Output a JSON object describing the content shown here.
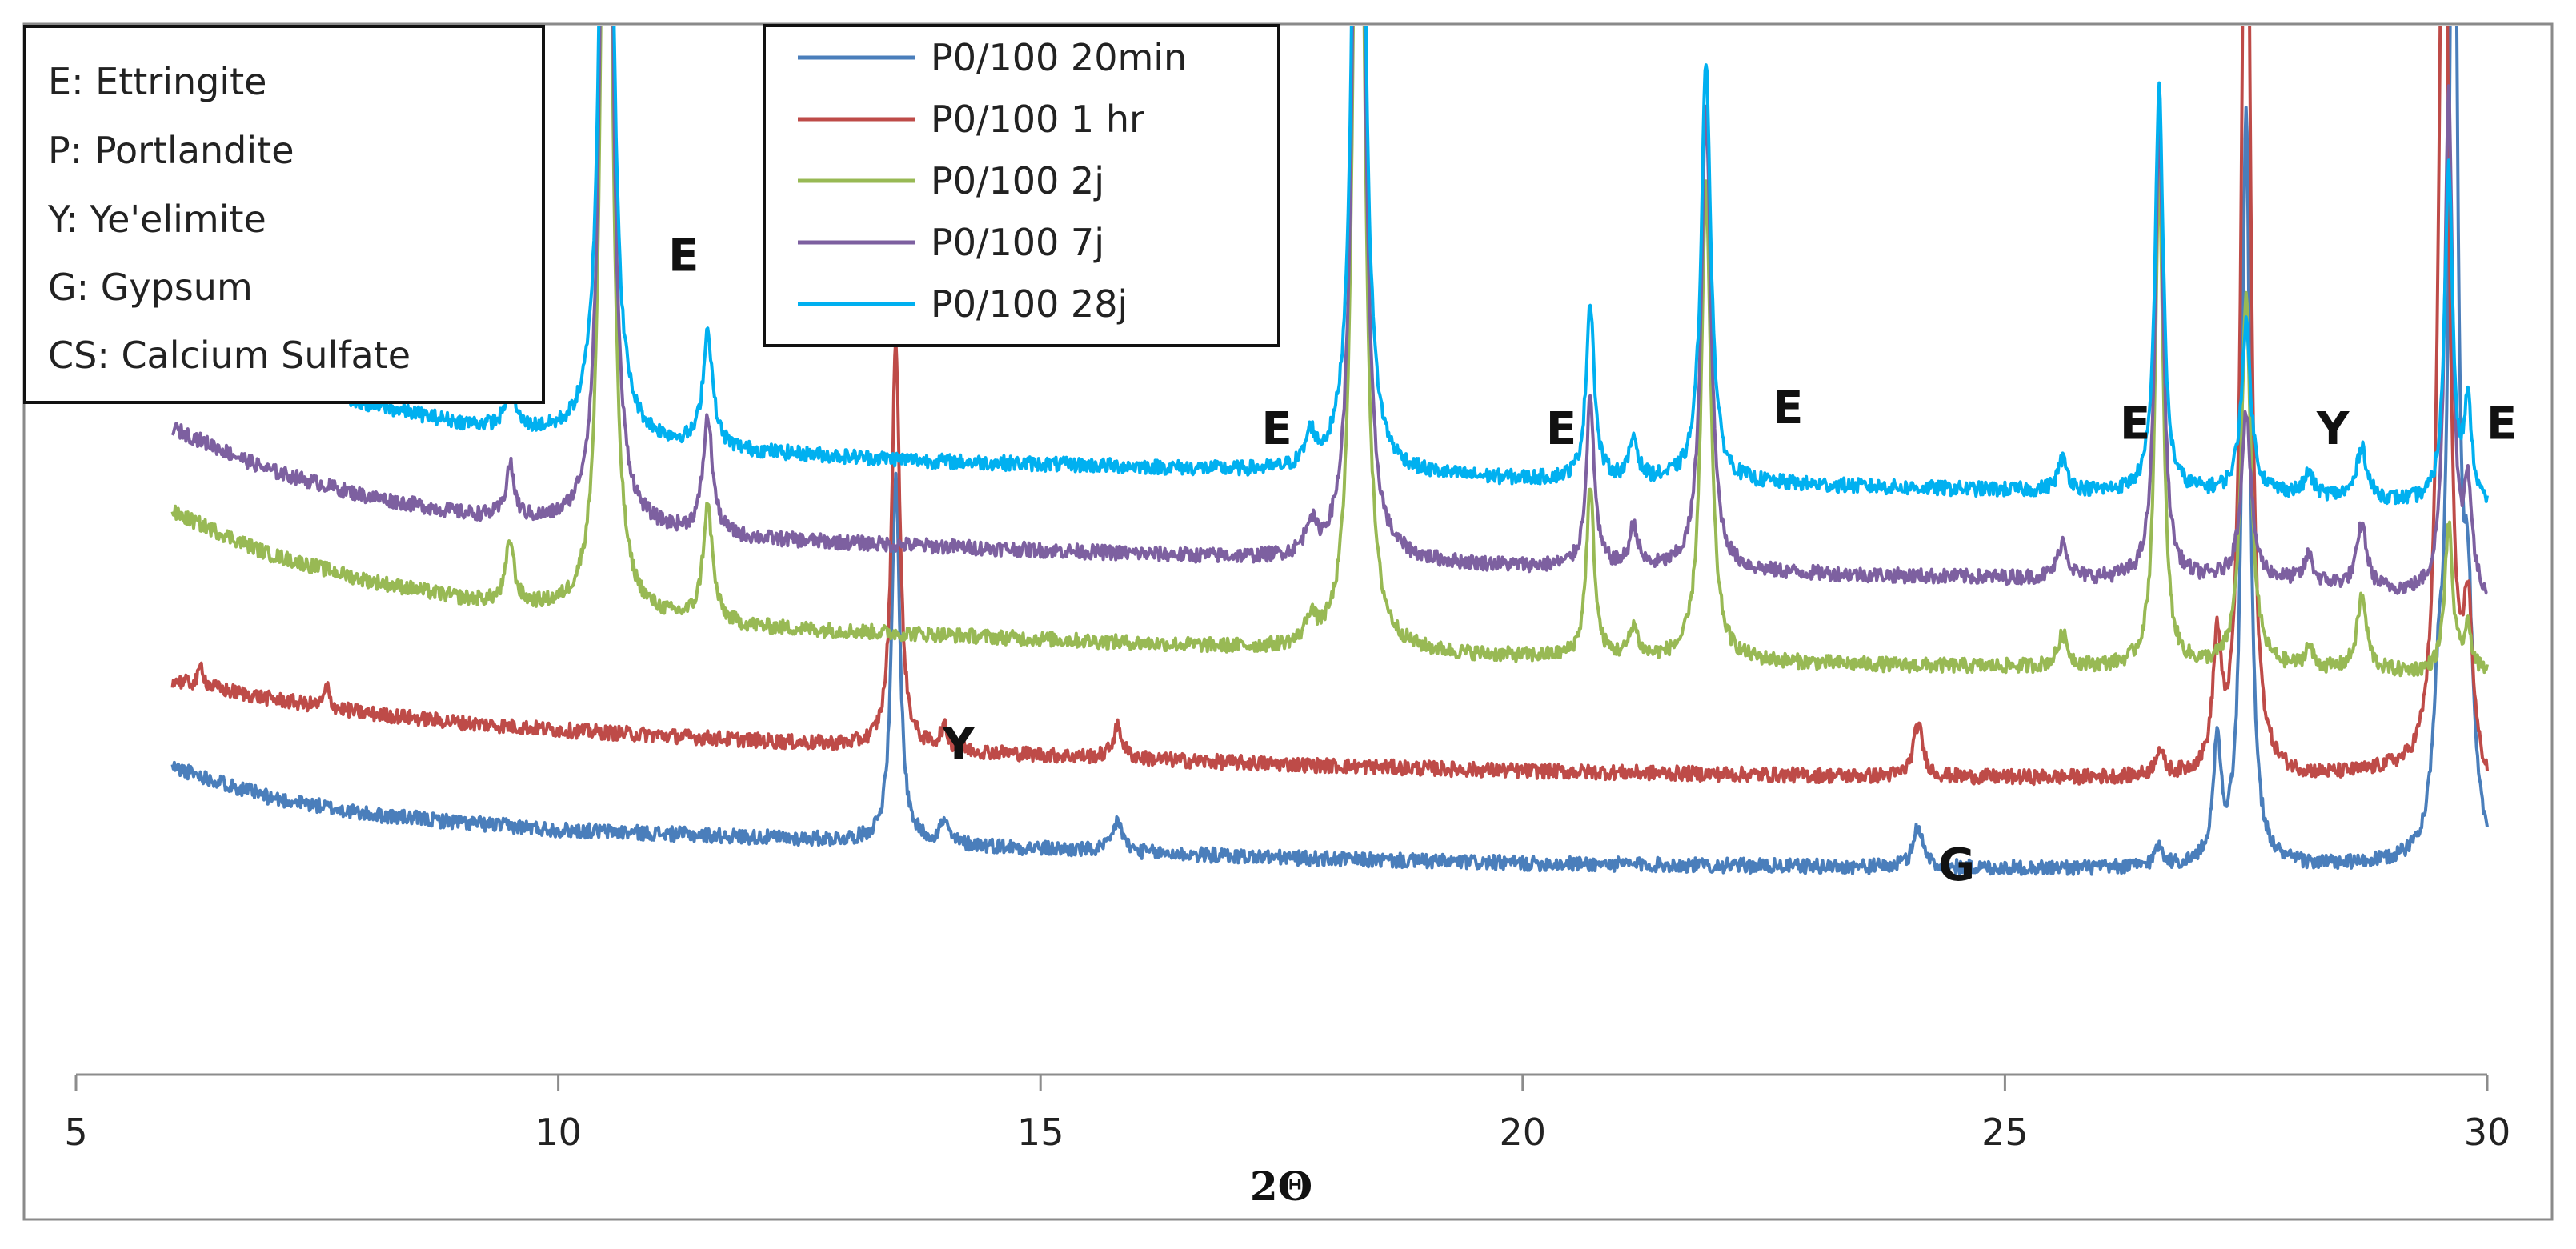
{
  "chart_data": {
    "type": "line",
    "title": "",
    "xlabel": "2Θ",
    "ylabel": "",
    "xlim": [
      5,
      30
    ],
    "ylim": [
      0,
      100
    ],
    "grid": false,
    "y_axis_visible": false,
    "x_ticks": [
      "5",
      "10",
      "15",
      "20",
      "25",
      "30"
    ],
    "legend_position": "top-center",
    "phase_key": [
      "E: Ettringite",
      "P: Portlandite",
      "Y: Ye'elimite",
      "G: Gypsum",
      "CS: Calcium Sulfate"
    ],
    "series": [
      {
        "name": "P0/100 20min",
        "color": "#4a7ebb",
        "x_start": 6,
        "x_end": 30,
        "baseline": [
          [
            6,
            29.3
          ],
          [
            7,
            26.4
          ],
          [
            8,
            24.8
          ],
          [
            9,
            24.0
          ],
          [
            10,
            23.3
          ],
          [
            12,
            22.6
          ],
          [
            14,
            21.9
          ],
          [
            16,
            21.1
          ],
          [
            18,
            20.5
          ],
          [
            20,
            20.1
          ],
          [
            22,
            19.9
          ],
          [
            24,
            19.7
          ],
          [
            26,
            19.6
          ],
          [
            28,
            19.7
          ],
          [
            30,
            19.8
          ]
        ],
        "peaks": [
          [
            13.5,
            35.0,
            0.05
          ],
          [
            14.0,
            2.0,
            0.05
          ],
          [
            15.8,
            3.0,
            0.06
          ],
          [
            24.1,
            4.0,
            0.06
          ],
          [
            26.6,
            2.0,
            0.05
          ],
          [
            27.2,
            11.0,
            0.05
          ],
          [
            27.5,
            72.0,
            0.05
          ],
          [
            29.5,
            12.0,
            0.07
          ],
          [
            29.65,
            110.0,
            0.05
          ],
          [
            29.8,
            20.0,
            0.06
          ]
        ]
      },
      {
        "name": "P0/100 1 hr",
        "color": "#be4b48",
        "x_start": 6,
        "x_end": 30,
        "baseline": [
          [
            6,
            37.5
          ],
          [
            7,
            35.8
          ],
          [
            8,
            34.4
          ],
          [
            9,
            33.5
          ],
          [
            10,
            32.8
          ],
          [
            12,
            31.8
          ],
          [
            14,
            30.8
          ],
          [
            16,
            30.0
          ],
          [
            18,
            29.4
          ],
          [
            20,
            28.9
          ],
          [
            22,
            28.6
          ],
          [
            24,
            28.3
          ],
          [
            26,
            28.2
          ],
          [
            28,
            28.1
          ],
          [
            29,
            28.5
          ],
          [
            30,
            26.3
          ]
        ],
        "peaks": [
          [
            6.3,
            2.0,
            0.03
          ],
          [
            7.6,
            2.0,
            0.03
          ],
          [
            13.5,
            39.0,
            0.05
          ],
          [
            14.0,
            2.0,
            0.05
          ],
          [
            15.8,
            3.0,
            0.06
          ],
          [
            24.1,
            5.0,
            0.06
          ],
          [
            26.6,
            2.5,
            0.05
          ],
          [
            27.2,
            12.0,
            0.05
          ],
          [
            27.5,
            110.0,
            0.05
          ],
          [
            29.55,
            100.0,
            0.06
          ],
          [
            29.8,
            15.0,
            0.06
          ]
        ]
      },
      {
        "name": "P0/100 2j",
        "color": "#98b954",
        "x_start": 6,
        "x_end": 30,
        "baseline": [
          [
            6,
            53.5
          ],
          [
            7,
            49.5
          ],
          [
            8,
            47.0
          ],
          [
            9,
            45.2
          ],
          [
            10,
            44.0
          ],
          [
            12,
            42.5
          ],
          [
            14,
            41.8
          ],
          [
            16,
            41.0
          ],
          [
            18,
            40.2
          ],
          [
            20,
            39.7
          ],
          [
            22,
            39.3
          ],
          [
            24,
            38.9
          ],
          [
            26,
            38.7
          ],
          [
            28,
            38.5
          ],
          [
            30,
            38.0
          ]
        ],
        "peaks": [
          [
            9.5,
            6.0,
            0.05
          ],
          [
            10.5,
            110.0,
            0.06
          ],
          [
            11.55,
            11.0,
            0.06
          ],
          [
            17.8,
            2.5,
            0.06
          ],
          [
            18.3,
            115.0,
            0.06
          ],
          [
            20.7,
            16.0,
            0.05
          ],
          [
            21.15,
            3.0,
            0.05
          ],
          [
            21.9,
            45.0,
            0.06
          ],
          [
            25.6,
            3.0,
            0.06
          ],
          [
            26.6,
            47.0,
            0.05
          ],
          [
            27.5,
            35.0,
            0.06
          ],
          [
            28.15,
            2.0,
            0.05
          ],
          [
            28.7,
            7.0,
            0.06
          ],
          [
            29.6,
            14.0,
            0.05
          ],
          [
            29.8,
            4.0,
            0.05
          ]
        ]
      },
      {
        "name": "P0/100 7j",
        "color": "#7d60a0",
        "x_start": 6,
        "x_end": 30,
        "baseline": [
          [
            6,
            61.5
          ],
          [
            7,
            57.5
          ],
          [
            8,
            55.0
          ],
          [
            9,
            53.3
          ],
          [
            10,
            52.2
          ],
          [
            12,
            50.9
          ],
          [
            14,
            50.2
          ],
          [
            16,
            49.5
          ],
          [
            18,
            48.8
          ],
          [
            20,
            48.3
          ],
          [
            22,
            47.8
          ],
          [
            24,
            47.4
          ],
          [
            26,
            47.1
          ],
          [
            28,
            46.9
          ],
          [
            30,
            44.8
          ]
        ],
        "peaks": [
          [
            9.5,
            5.0,
            0.05
          ],
          [
            10.5,
            110.0,
            0.06
          ],
          [
            11.55,
            11.0,
            0.06
          ],
          [
            17.8,
            3.0,
            0.06
          ],
          [
            18.3,
            110.0,
            0.06
          ],
          [
            20.7,
            16.0,
            0.05
          ],
          [
            21.15,
            4.0,
            0.05
          ],
          [
            21.9,
            44.0,
            0.06
          ],
          [
            25.6,
            3.5,
            0.06
          ],
          [
            26.6,
            44.0,
            0.05
          ],
          [
            27.5,
            16.0,
            0.06
          ],
          [
            28.15,
            2.5,
            0.05
          ],
          [
            28.7,
            6.0,
            0.06
          ],
          [
            29.6,
            48.0,
            0.05
          ],
          [
            29.8,
            10.0,
            0.05
          ]
        ]
      },
      {
        "name": "P0/100 28j",
        "color": "#00b0f0",
        "x_start": 6,
        "x_end": 30,
        "baseline": [
          [
            6,
            73.0
          ],
          [
            7,
            67.0
          ],
          [
            8,
            63.8
          ],
          [
            9,
            61.9
          ],
          [
            10,
            60.7
          ],
          [
            12,
            59.2
          ],
          [
            14,
            58.3
          ],
          [
            16,
            57.8
          ],
          [
            18,
            57.1
          ],
          [
            20,
            56.6
          ],
          [
            22,
            56.3
          ],
          [
            24,
            55.8
          ],
          [
            26,
            55.4
          ],
          [
            28,
            55.2
          ],
          [
            30,
            53.8
          ]
        ],
        "peaks": [
          [
            9.5,
            5.0,
            0.05
          ],
          [
            10.5,
            110.0,
            0.06
          ],
          [
            11.55,
            11.0,
            0.06
          ],
          [
            17.8,
            3.0,
            0.06
          ],
          [
            18.3,
            110.0,
            0.06
          ],
          [
            20.7,
            17.0,
            0.05
          ],
          [
            21.15,
            4.0,
            0.05
          ],
          [
            21.9,
            40.0,
            0.06
          ],
          [
            25.6,
            3.0,
            0.06
          ],
          [
            26.6,
            39.0,
            0.05
          ],
          [
            27.5,
            16.0,
            0.06
          ],
          [
            28.15,
            2.0,
            0.05
          ],
          [
            28.7,
            5.0,
            0.06
          ],
          [
            29.6,
            32.0,
            0.05
          ],
          [
            29.8,
            9.0,
            0.05
          ]
        ]
      }
    ],
    "annotations": [
      {
        "text": "E",
        "x": 11.3,
        "y": 76.5
      },
      {
        "text": "E",
        "x": 17.45,
        "y": 60.0
      },
      {
        "text": "E",
        "x": 20.4,
        "y": 60.0
      },
      {
        "text": "E",
        "x": 22.75,
        "y": 62.0
      },
      {
        "text": "E",
        "x": 26.35,
        "y": 60.5
      },
      {
        "text": "Y",
        "x": 28.4,
        "y": 60.0
      },
      {
        "text": "E",
        "x": 30.15,
        "y": 60.5
      },
      {
        "text": "Y",
        "x": 14.15,
        "y": 30.0
      },
      {
        "text": "G",
        "x": 24.5,
        "y": 18.5
      }
    ]
  }
}
